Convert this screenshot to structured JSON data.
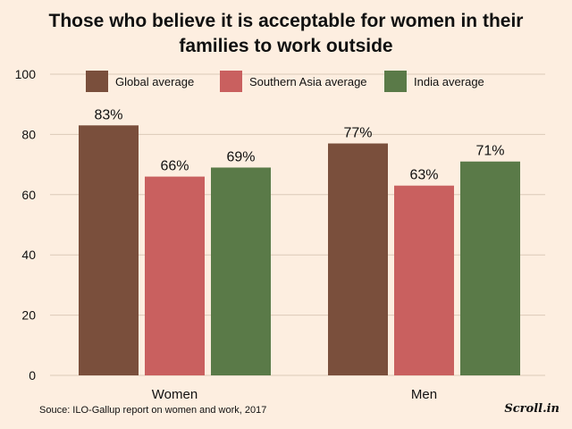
{
  "title_line1": "Those who believe it is acceptable for women in their",
  "title_line2": "families to work outside",
  "source": "Souce: ILO-Gallup report on women and work, 2017",
  "brand": "Scroll.in",
  "colors": {
    "background": "#fdeee0",
    "gridline": "#dcc9b8",
    "global": "#7a4f3c",
    "southern_asia": "#c9605f",
    "india": "#5a7a48",
    "text": "#111111"
  },
  "chart_data": {
    "type": "bar",
    "title": "Those who believe it is acceptable for women in their families to work outside",
    "categories": [
      "Women",
      "Men"
    ],
    "series": [
      {
        "name": "Global average",
        "values": [
          83,
          77
        ],
        "labels": [
          "83%",
          "77%"
        ],
        "color": "#7a4f3c"
      },
      {
        "name": "Southern Asia average",
        "values": [
          66,
          63
        ],
        "labels": [
          "66%",
          "63%"
        ],
        "color": "#c9605f"
      },
      {
        "name": "India average",
        "values": [
          69,
          71
        ],
        "labels": [
          "69%",
          "71%"
        ],
        "color": "#5a7a48"
      }
    ],
    "ylim": [
      0,
      100
    ],
    "yticks": [
      0,
      20,
      40,
      60,
      80,
      100
    ],
    "xlabel": "",
    "ylabel": "",
    "grid": true,
    "legend": "top"
  }
}
